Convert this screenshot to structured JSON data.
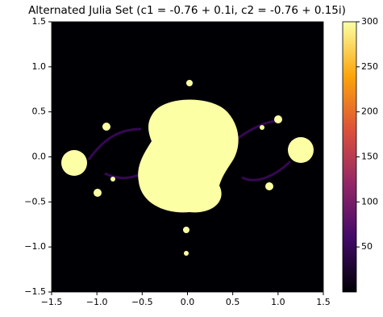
{
  "chart_data": {
    "type": "heatmap",
    "title": "Alternated Julia Set (c1 = -0.76 + 0.1i, c2 = -0.76 + 0.15i)",
    "xlim": [
      -1.5,
      1.5
    ],
    "ylim": [
      -1.5,
      1.5
    ],
    "xticks": [
      {
        "value": -1.5,
        "label": "−1.5"
      },
      {
        "value": -1.0,
        "label": "−1.0"
      },
      {
        "value": -0.5,
        "label": "−0.5"
      },
      {
        "value": 0,
        "label": "0.0"
      },
      {
        "value": 0.5,
        "label": "0.5"
      },
      {
        "value": 1.0,
        "label": "1.0"
      },
      {
        "value": 1.5,
        "label": "1.5"
      }
    ],
    "yticks": [
      {
        "value": -1.5,
        "label": "−1.5"
      },
      {
        "value": -1.0,
        "label": "−1.0"
      },
      {
        "value": -0.5,
        "label": "−0.5"
      },
      {
        "value": 0,
        "label": "0.0"
      },
      {
        "value": 0.5,
        "label": "0.5"
      },
      {
        "value": 1.0,
        "label": "1.0"
      },
      {
        "value": 1.5,
        "label": "1.5"
      }
    ],
    "colorbar": {
      "lim": [
        0,
        300
      ],
      "ticks": [
        50,
        100,
        150,
        200,
        250,
        300
      ]
    },
    "colors": [
      "#000004",
      "#420a68",
      "#932667",
      "#dd513a",
      "#fca50a",
      "#fcffa4"
    ]
  }
}
